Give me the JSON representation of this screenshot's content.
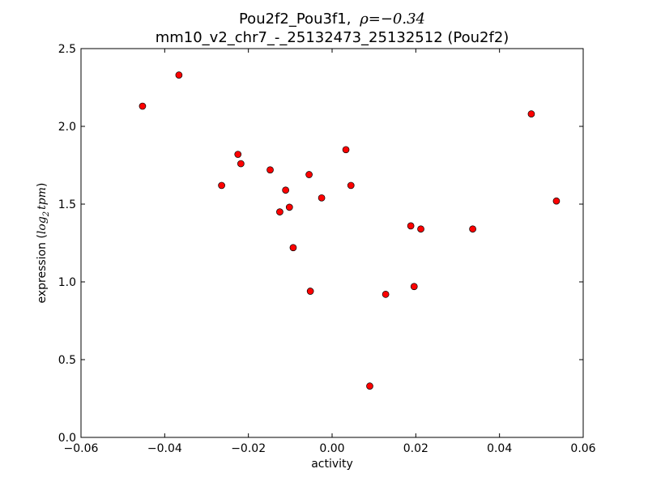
{
  "chart_data": {
    "type": "scatter",
    "title_line1": "Pou2f2_Pou3f1,",
    "title_rho": "ρ=−0.34",
    "title_line2": "mm10_v2_chr7_-_25132473_25132512 (Pou2f2)",
    "xlabel": "activity",
    "ylabel_prefix": "expression (",
    "ylabel_math": "log",
    "ylabel_sub": "2",
    "ylabel_math2": "tpm",
    "ylabel_suffix": ")",
    "xlim": [
      -0.06,
      0.06
    ],
    "ylim": [
      0.0,
      2.5
    ],
    "x_ticks": [
      -0.06,
      -0.04,
      -0.02,
      0.0,
      0.02,
      0.04,
      0.06
    ],
    "x_tick_labels": [
      "−0.06",
      "−0.04",
      "−0.02",
      "0.00",
      "0.02",
      "0.04",
      "0.06"
    ],
    "y_ticks": [
      0.0,
      0.5,
      1.0,
      1.5,
      2.0,
      2.5
    ],
    "y_tick_labels": [
      "0.0",
      "0.5",
      "1.0",
      "1.5",
      "2.0",
      "2.5"
    ],
    "grid": false,
    "marker_color": "#ff0000",
    "marker_edge": "#000000",
    "points": [
      {
        "x": -0.0453,
        "y": 2.13
      },
      {
        "x": -0.0366,
        "y": 2.33
      },
      {
        "x": -0.0264,
        "y": 1.62
      },
      {
        "x": -0.0225,
        "y": 1.82
      },
      {
        "x": -0.0218,
        "y": 1.76
      },
      {
        "x": -0.0148,
        "y": 1.72
      },
      {
        "x": -0.0125,
        "y": 1.45
      },
      {
        "x": -0.0111,
        "y": 1.59
      },
      {
        "x": -0.0102,
        "y": 1.48
      },
      {
        "x": -0.0093,
        "y": 1.22
      },
      {
        "x": -0.0055,
        "y": 1.69
      },
      {
        "x": -0.0052,
        "y": 0.94
      },
      {
        "x": -0.0025,
        "y": 1.54
      },
      {
        "x": 0.0033,
        "y": 1.85
      },
      {
        "x": 0.0045,
        "y": 1.62
      },
      {
        "x": 0.009,
        "y": 0.33
      },
      {
        "x": 0.0128,
        "y": 0.92
      },
      {
        "x": 0.0188,
        "y": 1.36
      },
      {
        "x": 0.0196,
        "y": 0.97
      },
      {
        "x": 0.0212,
        "y": 1.34
      },
      {
        "x": 0.0336,
        "y": 1.34
      },
      {
        "x": 0.0476,
        "y": 2.08
      },
      {
        "x": 0.0536,
        "y": 1.52
      }
    ]
  }
}
